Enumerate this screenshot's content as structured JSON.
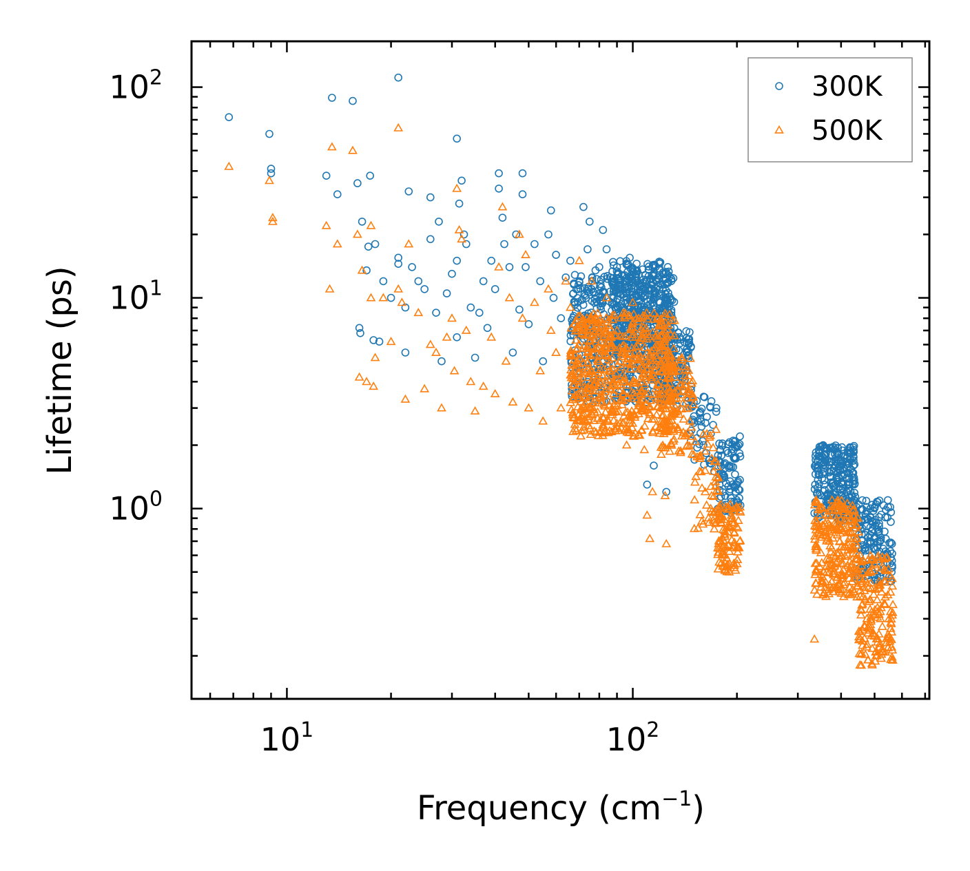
{
  "chart_data": {
    "type": "scatter",
    "xscale": "log",
    "yscale": "log",
    "xlim": [
      5.3,
      720
    ],
    "ylim": [
      0.125,
      165
    ],
    "xlabel": "Frequency (cm",
    "xlabel_sup": "−1",
    "xlabel_close": ")",
    "ylabel": "Lifetime (ps)",
    "x_major_ticks": [
      {
        "value": 10,
        "base": "10",
        "exp": "1"
      },
      {
        "value": 100,
        "base": "10",
        "exp": "2"
      }
    ],
    "y_major_ticks": [
      {
        "value": 1,
        "base": "10",
        "exp": "0"
      },
      {
        "value": 10,
        "base": "10",
        "exp": "1"
      },
      {
        "value": 100,
        "base": "10",
        "exp": "2"
      }
    ],
    "legend_position": "top-right",
    "series": [
      {
        "name": "300K",
        "marker": "circle",
        "color": "#1f77b4",
        "points": [
          [
            6.8,
            72
          ],
          [
            8.9,
            60
          ],
          [
            9.0,
            41
          ],
          [
            9.0,
            39
          ],
          [
            13.0,
            38
          ],
          [
            13.5,
            89
          ],
          [
            14.0,
            31
          ],
          [
            15.5,
            86
          ],
          [
            16.0,
            35
          ],
          [
            16.5,
            23
          ],
          [
            17.2,
            17.5
          ],
          [
            17.4,
            38
          ],
          [
            17.0,
            13.5
          ],
          [
            18.0,
            18
          ],
          [
            16.2,
            7.2
          ],
          [
            16.3,
            6.8
          ],
          [
            17.8,
            6.3
          ],
          [
            18.5,
            6.2
          ],
          [
            19.0,
            12
          ],
          [
            20.0,
            10
          ],
          [
            21.0,
            111
          ],
          [
            21.0,
            15.5
          ],
          [
            21.0,
            14.5
          ],
          [
            22.0,
            9.0
          ],
          [
            22.0,
            5.5
          ],
          [
            22.5,
            32
          ],
          [
            23.0,
            14
          ],
          [
            24.0,
            12
          ],
          [
            25.0,
            11
          ],
          [
            26.0,
            30
          ],
          [
            26.0,
            19
          ],
          [
            27.0,
            8.5
          ],
          [
            27.5,
            23
          ],
          [
            28.0,
            5.0
          ],
          [
            29.0,
            10.5
          ],
          [
            30.0,
            13
          ],
          [
            31.0,
            57
          ],
          [
            31.0,
            15
          ],
          [
            31.0,
            6.5
          ],
          [
            31.5,
            28
          ],
          [
            32.0,
            36
          ],
          [
            32.5,
            20
          ],
          [
            33.0,
            18
          ],
          [
            34.0,
            9.0
          ],
          [
            35.0,
            5.2
          ],
          [
            36.0,
            8.5
          ],
          [
            37.0,
            12
          ],
          [
            38.0,
            7.2
          ],
          [
            39.0,
            15
          ],
          [
            40.0,
            11
          ],
          [
            41.0,
            39
          ],
          [
            41.0,
            33
          ],
          [
            42.0,
            24
          ],
          [
            42.5,
            18
          ],
          [
            44.0,
            14
          ],
          [
            45.0,
            5.5
          ],
          [
            46.0,
            20
          ],
          [
            47.0,
            8.8
          ],
          [
            48.0,
            39
          ],
          [
            48.0,
            31
          ],
          [
            49.0,
            14
          ],
          [
            50.0,
            7.5
          ],
          [
            52.0,
            18
          ],
          [
            54.0,
            12
          ],
          [
            55.0,
            5.0
          ],
          [
            57.0,
            20
          ],
          [
            58.0,
            26
          ],
          [
            59.0,
            10
          ],
          [
            60.0,
            16
          ],
          [
            62.0,
            8.0
          ],
          [
            64.0,
            12.5
          ],
          [
            66.0,
            15
          ],
          [
            68.0,
            9.5
          ],
          [
            70.0,
            12
          ],
          [
            72.0,
            27
          ],
          [
            74.0,
            17
          ],
          [
            75.0,
            23
          ],
          [
            76.0,
            11
          ],
          [
            78.0,
            13.5
          ],
          [
            80.0,
            14
          ],
          [
            82.0,
            21
          ],
          [
            84.0,
            17
          ],
          [
            86.0,
            12.5
          ],
          [
            88.0,
            10
          ],
          [
            90.0,
            14
          ],
          [
            92.0,
            11
          ],
          [
            94.0,
            8.5
          ],
          [
            96.0,
            12
          ],
          [
            98.0,
            15.5
          ],
          [
            100.0,
            10
          ],
          [
            102.0,
            13
          ],
          [
            104.0,
            9.0
          ],
          [
            106.0,
            11.5
          ],
          [
            108.0,
            7.5
          ],
          [
            110.0,
            12
          ],
          [
            112.0,
            8.0
          ],
          [
            114.0,
            14
          ],
          [
            116.0,
            10
          ],
          [
            118.0,
            6.5
          ],
          [
            120.0,
            9.5
          ],
          [
            122.0,
            11
          ],
          [
            124.0,
            7.2
          ],
          [
            126.0,
            5.5
          ],
          [
            130.0,
            6.5
          ],
          [
            134.0,
            5.0
          ],
          [
            138.0,
            4.5
          ],
          [
            142.0,
            3.8
          ],
          [
            146.0,
            3.0
          ],
          [
            150.0,
            3.2
          ],
          [
            154.0,
            2.6
          ],
          [
            160.0,
            2.0
          ],
          [
            166.0,
            1.7
          ],
          [
            172.0,
            1.5
          ],
          [
            178.0,
            1.3
          ],
          [
            184.0,
            1.4
          ],
          [
            190.0,
            1.2
          ],
          [
            196.0,
            1.0
          ],
          [
            200.0,
            1.3
          ],
          [
            204.0,
            2.2
          ],
          [
            110.0,
            1.3
          ],
          [
            125.0,
            1.2
          ],
          [
            115.0,
            1.6
          ],
          [
            335.0,
            0.95
          ],
          [
            345.0,
            1.9
          ],
          [
            355.0,
            2.0
          ],
          [
            365.0,
            1.7
          ],
          [
            375.0,
            1.5
          ],
          [
            385.0,
            1.6
          ],
          [
            395.0,
            1.4
          ],
          [
            405.0,
            1.3
          ],
          [
            415.0,
            1.2
          ],
          [
            425.0,
            1.0
          ],
          [
            435.0,
            1.1
          ],
          [
            445.0,
            0.9
          ],
          [
            455.0,
            0.8
          ],
          [
            470.0,
            0.75
          ],
          [
            485.0,
            0.7
          ],
          [
            500.0,
            0.65
          ],
          [
            515.0,
            0.78
          ],
          [
            530.0,
            0.6
          ],
          [
            545.0,
            0.55
          ],
          [
            560.0,
            0.5
          ]
        ],
        "clusters": [
          {
            "x": [
              66,
              132
            ],
            "y": [
              3.2,
              13
            ],
            "n": 620
          },
          {
            "x": [
              86,
              128
            ],
            "y": [
              6,
              15
            ],
            "n": 260
          },
          {
            "x": [
              120,
              148
            ],
            "y": [
              3.0,
              7.2
            ],
            "n": 130
          },
          {
            "x": [
              146,
              175
            ],
            "y": [
              1.6,
              3.4
            ],
            "n": 40
          },
          {
            "x": [
              176,
              205
            ],
            "y": [
              0.95,
              2.1
            ],
            "n": 90
          },
          {
            "x": [
              335,
              440
            ],
            "y": [
              0.85,
              2.0
            ],
            "n": 260
          },
          {
            "x": [
              440,
              565
            ],
            "y": [
              0.45,
              1.1
            ],
            "n": 150
          }
        ]
      },
      {
        "name": "500K",
        "marker": "triangle",
        "color": "#ff7f0e",
        "points": [
          [
            6.8,
            42
          ],
          [
            8.9,
            36
          ],
          [
            9.1,
            24
          ],
          [
            9.1,
            23
          ],
          [
            13.0,
            22
          ],
          [
            13.3,
            11
          ],
          [
            13.5,
            52
          ],
          [
            14.0,
            18
          ],
          [
            15.5,
            50
          ],
          [
            16.0,
            20
          ],
          [
            16.2,
            4.2
          ],
          [
            16.5,
            13.5
          ],
          [
            17.0,
            4.0
          ],
          [
            17.5,
            22
          ],
          [
            17.5,
            10
          ],
          [
            17.8,
            3.8
          ],
          [
            18.0,
            5.2
          ],
          [
            19.0,
            10
          ],
          [
            20.0,
            6.2
          ],
          [
            21.0,
            64
          ],
          [
            21.0,
            11
          ],
          [
            21.5,
            9.5
          ],
          [
            22.0,
            3.3
          ],
          [
            22.5,
            18
          ],
          [
            24.0,
            8.5
          ],
          [
            25.0,
            3.7
          ],
          [
            26.0,
            6.0
          ],
          [
            27.0,
            5.5
          ],
          [
            28.0,
            3.0
          ],
          [
            29.0,
            6.5
          ],
          [
            30.0,
            8.0
          ],
          [
            30.5,
            4.5
          ],
          [
            31.0,
            33
          ],
          [
            31.5,
            21
          ],
          [
            32.0,
            19
          ],
          [
            33.0,
            7.0
          ],
          [
            34.0,
            4.0
          ],
          [
            35.0,
            2.9
          ],
          [
            37.0,
            3.8
          ],
          [
            39.0,
            6.5
          ],
          [
            40.0,
            3.5
          ],
          [
            41.0,
            14
          ],
          [
            42.0,
            27
          ],
          [
            43.0,
            5.0
          ],
          [
            44.0,
            10
          ],
          [
            45.0,
            3.2
          ],
          [
            47.0,
            20
          ],
          [
            48.0,
            8.0
          ],
          [
            49.0,
            16
          ],
          [
            50.0,
            3.0
          ],
          [
            52.0,
            9.5
          ],
          [
            54.0,
            4.5
          ],
          [
            55.0,
            2.6
          ],
          [
            57.0,
            11
          ],
          [
            58.0,
            7.0
          ],
          [
            60.0,
            5.5
          ],
          [
            62.0,
            3.0
          ],
          [
            64.0,
            12
          ],
          [
            66.0,
            9.0
          ],
          [
            68.0,
            2.4
          ],
          [
            70.0,
            15
          ],
          [
            72.0,
            7.0
          ],
          [
            74.0,
            5.5
          ],
          [
            76.0,
            12
          ],
          [
            78.0,
            8.0
          ],
          [
            80.0,
            4.0
          ],
          [
            82.0,
            2.5
          ],
          [
            84.0,
            10
          ],
          [
            86.0,
            6.5
          ],
          [
            88.0,
            3.5
          ],
          [
            90.0,
            7.0
          ],
          [
            92.0,
            5.0
          ],
          [
            94.0,
            4.0
          ],
          [
            96.0,
            2.0
          ],
          [
            100.0,
            9.5
          ],
          [
            104.0,
            8.0
          ],
          [
            108.0,
            1.9
          ],
          [
            110.0,
            0.93
          ],
          [
            112.0,
            0.72
          ],
          [
            114.0,
            1.2
          ],
          [
            116.0,
            4.5
          ],
          [
            120.0,
            6.0
          ],
          [
            124.0,
            1.15
          ],
          [
            125.0,
            0.68
          ],
          [
            128.0,
            2.5
          ],
          [
            132.0,
            3.5
          ],
          [
            136.0,
            2.8
          ],
          [
            140.0,
            2.3
          ],
          [
            144.0,
            2.0
          ],
          [
            150.0,
            1.8
          ],
          [
            156.0,
            1.5
          ],
          [
            162.0,
            1.2
          ],
          [
            168.0,
            1.0
          ],
          [
            172.0,
            0.8
          ],
          [
            176.0,
            0.65
          ],
          [
            180.0,
            0.55
          ],
          [
            185.0,
            0.6
          ],
          [
            190.0,
            0.5
          ],
          [
            196.0,
            0.55
          ],
          [
            200.0,
            0.65
          ],
          [
            204.0,
            0.7
          ],
          [
            335.0,
            0.24
          ],
          [
            340.0,
            0.55
          ],
          [
            350.0,
            1.0
          ],
          [
            360.0,
            0.85
          ],
          [
            370.0,
            0.7
          ],
          [
            380.0,
            0.6
          ],
          [
            390.0,
            0.75
          ],
          [
            400.0,
            0.55
          ],
          [
            410.0,
            0.8
          ],
          [
            420.0,
            0.5
          ],
          [
            430.0,
            0.45
          ],
          [
            445.0,
            0.38
          ],
          [
            460.0,
            0.5
          ],
          [
            475.0,
            0.3
          ],
          [
            490.0,
            0.25
          ],
          [
            505.0,
            0.2
          ],
          [
            520.0,
            0.3
          ],
          [
            535.0,
            0.35
          ],
          [
            550.0,
            0.3
          ],
          [
            560.0,
            0.22
          ],
          [
            565.0,
            0.35
          ]
        ],
        "clusters": [
          {
            "x": [
              66,
              132
            ],
            "y": [
              2.2,
              8.5
            ],
            "n": 620
          },
          {
            "x": [
              120,
              150
            ],
            "y": [
              1.8,
              5.5
            ],
            "n": 110
          },
          {
            "x": [
              150,
              178
            ],
            "y": [
              0.8,
              2.4
            ],
            "n": 50
          },
          {
            "x": [
              176,
              205
            ],
            "y": [
              0.5,
              1.05
            ],
            "n": 95
          },
          {
            "x": [
              335,
              450
            ],
            "y": [
              0.38,
              1.1
            ],
            "n": 240
          },
          {
            "x": [
              450,
              565
            ],
            "y": [
              0.18,
              0.6
            ],
            "n": 160
          }
        ]
      }
    ]
  }
}
